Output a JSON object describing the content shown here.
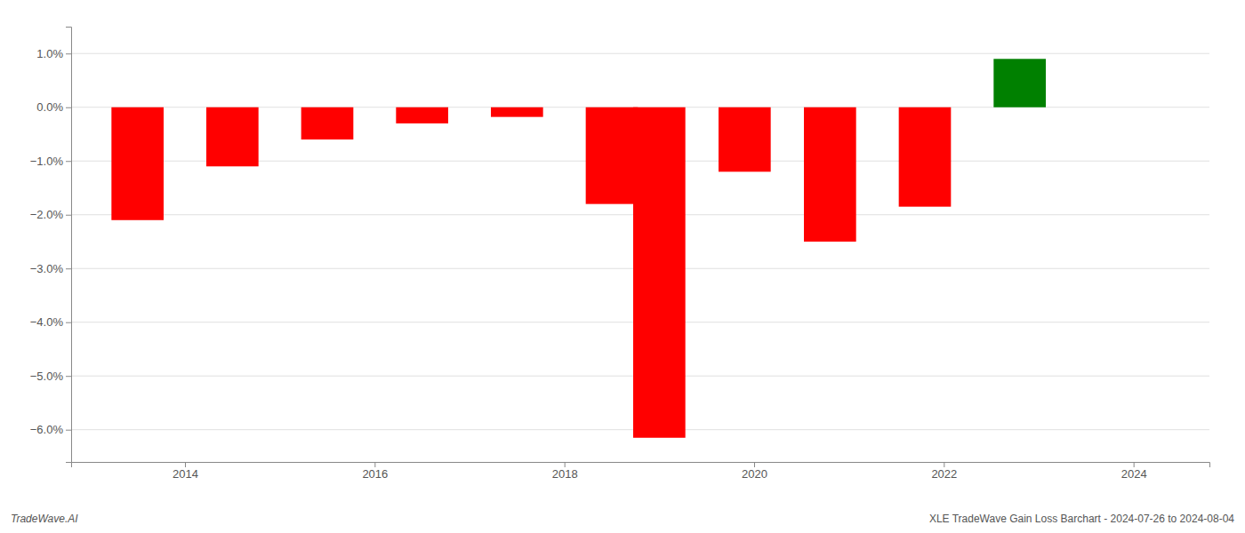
{
  "chart_data": {
    "type": "bar",
    "x": [
      2013.5,
      2014.5,
      2015.5,
      2016.5,
      2017.5,
      2018.5,
      2019.0,
      2019.9,
      2020.8,
      2021.8,
      2022.8
    ],
    "values": [
      -2.1,
      -1.1,
      -0.6,
      -0.3,
      -0.18,
      -1.8,
      -6.15,
      -1.2,
      -2.5,
      -1.85,
      0.9
    ],
    "colors": [
      "red",
      "red",
      "red",
      "red",
      "red",
      "red",
      "red",
      "red",
      "red",
      "red",
      "green"
    ],
    "ylim": [
      -6.6,
      1.5
    ],
    "yticks": [
      {
        "value": 1.0,
        "label": "1.0%"
      },
      {
        "value": 0.0,
        "label": "0.0%"
      },
      {
        "value": -1.0,
        "label": "−1.0%"
      },
      {
        "value": -2.0,
        "label": "−2.0%"
      },
      {
        "value": -3.0,
        "label": "−3.0%"
      },
      {
        "value": -4.0,
        "label": "−4.0%"
      },
      {
        "value": -5.0,
        "label": "−5.0%"
      },
      {
        "value": -6.0,
        "label": "−6.0%"
      }
    ],
    "xlim": [
      2012.8,
      2024.8
    ],
    "xticks": [
      2014,
      2016,
      2018,
      2020,
      2022,
      2024
    ],
    "grid": true,
    "annotations": [
      "TradeWave.AI",
      "XLE TradeWave Gain Loss Barchart - 2024-07-26 to 2024-08-04"
    ]
  }
}
